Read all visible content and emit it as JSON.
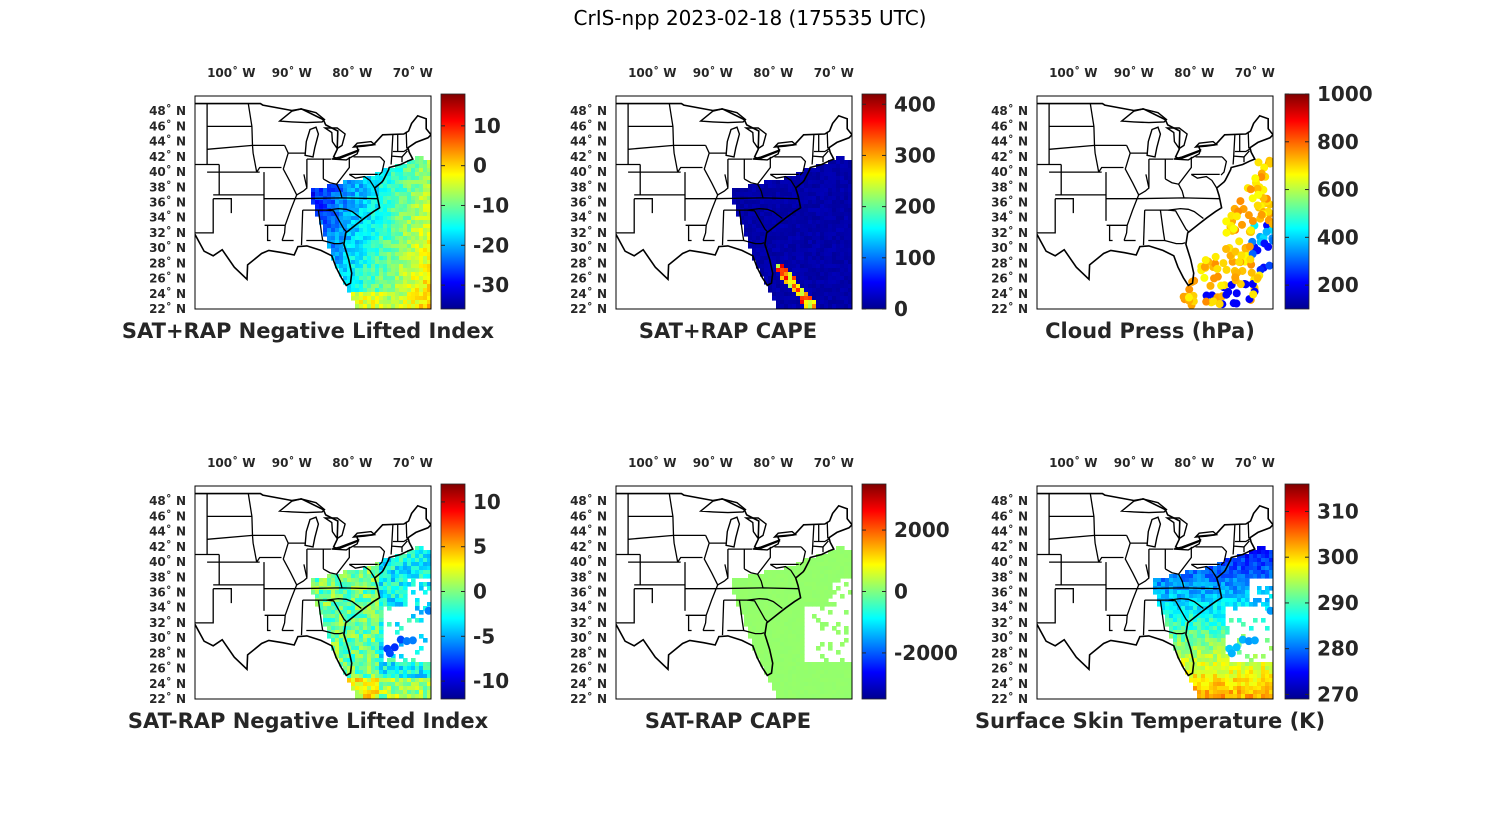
{
  "title": "CrIS-npp 2023-02-18 (175535 UTC)",
  "colormap": [
    "#00008f",
    "#0000ff",
    "#0080ff",
    "#00ffff",
    "#80ff80",
    "#ffff00",
    "#ff8000",
    "#ff0000",
    "#800000"
  ],
  "map": {
    "lon_range": [
      -106,
      -67
    ],
    "lat_range": [
      22,
      50
    ],
    "lon_ticks": [
      {
        "value": -100,
        "label": "100˚ W"
      },
      {
        "value": -90,
        "label": "90˚ W"
      },
      {
        "value": -80,
        "label": "80˚ W"
      },
      {
        "value": -70,
        "label": "70˚ W"
      }
    ],
    "lat_ticks": [
      {
        "value": 48,
        "label": "48˚ N"
      },
      {
        "value": 46,
        "label": "46˚ N"
      },
      {
        "value": 44,
        "label": "44˚ N"
      },
      {
        "value": 42,
        "label": "42˚ N"
      },
      {
        "value": 40,
        "label": "40˚ N"
      },
      {
        "value": 38,
        "label": "38˚ N"
      },
      {
        "value": 36,
        "label": "36˚ N"
      },
      {
        "value": 34,
        "label": "34˚ N"
      },
      {
        "value": 32,
        "label": "32˚ N"
      },
      {
        "value": 30,
        "label": "30˚ N"
      },
      {
        "value": 28,
        "label": "28˚ N"
      },
      {
        "value": 26,
        "label": "26˚ N"
      },
      {
        "value": 24,
        "label": "24˚ N"
      },
      {
        "value": 22,
        "label": "22˚ N"
      }
    ]
  },
  "chart_data": [
    {
      "type": "heatmap",
      "title": "SAT+RAP Negative Lifted Index",
      "colorbar_range": [
        -36,
        18
      ],
      "colorbar_ticks": [
        10,
        0,
        -10,
        -20,
        -30
      ],
      "fill": "swath_gradient",
      "swath": "full"
    },
    {
      "type": "heatmap",
      "title": "SAT+RAP CAPE",
      "colorbar_range": [
        0,
        420
      ],
      "colorbar_ticks": [
        400,
        300,
        200,
        100,
        0
      ],
      "fill": "swath_dark",
      "swath": "full"
    },
    {
      "type": "scatter",
      "title": "Cloud Press (hPa)",
      "colorbar_range": [
        100,
        1000
      ],
      "colorbar_ticks": [
        1000,
        800,
        600,
        400,
        200
      ],
      "fill": "clouds",
      "swath": "none"
    },
    {
      "type": "heatmap",
      "title": "SAT-RAP Negative Lifted Index",
      "colorbar_range": [
        -12,
        12
      ],
      "colorbar_ticks": [
        10,
        5,
        0,
        -5,
        -10
      ],
      "fill": "swath_mixed",
      "swath": "gappy"
    },
    {
      "type": "heatmap",
      "title": "SAT-RAP CAPE",
      "colorbar_range": [
        -3500,
        3500
      ],
      "colorbar_ticks": [
        2000,
        0,
        -2000
      ],
      "fill": "swath_green",
      "swath": "gappy"
    },
    {
      "type": "heatmap",
      "title": "Surface Skin Temperature (K)",
      "colorbar_range": [
        269,
        316
      ],
      "colorbar_ticks": [
        310,
        300,
        290,
        280,
        270
      ],
      "fill": "swath_temp",
      "swath": "gappy"
    }
  ]
}
